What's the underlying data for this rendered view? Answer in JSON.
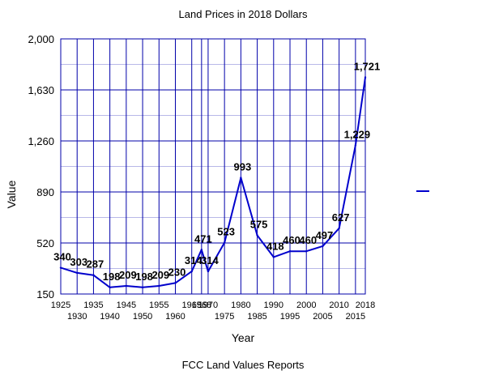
{
  "chart_data": {
    "type": "line",
    "title": "Land Prices in 2018 Dollars",
    "xlabel": "Year",
    "ylabel": "Value",
    "footer": "FCC Land Values Reports",
    "ylim": [
      150,
      2000
    ],
    "yticks": [
      "2,000",
      "1,630",
      "1,260",
      "890",
      "520",
      "150"
    ],
    "ytick_values": [
      2000,
      1630,
      1260,
      890,
      520,
      150
    ],
    "x": [
      "1925",
      "1930",
      "1935",
      "1940",
      "1945",
      "1950",
      "1955",
      "1960",
      "1965",
      "1968",
      "1970",
      "1975",
      "1980",
      "1985",
      "1990",
      "1995",
      "2000",
      "2005",
      "2010",
      "2015",
      "2018"
    ],
    "values": [
      340,
      303,
      287,
      198,
      209,
      198,
      209,
      230,
      314,
      471,
      314,
      523,
      993,
      575,
      418,
      460,
      460,
      497,
      627,
      1229,
      1721
    ],
    "data_labels": [
      "340",
      "303",
      "287",
      "198",
      "209",
      "198",
      "209",
      "230",
      "314",
      "471",
      "314",
      "523",
      "993",
      "575",
      "418",
      "460",
      "460",
      "497",
      "627",
      "1,229",
      "1,721"
    ],
    "grid": true,
    "legend": "right",
    "line_color": "#0000cc",
    "grid_color": "#0000aa",
    "minor_grid_color": "#b8b8e8"
  }
}
